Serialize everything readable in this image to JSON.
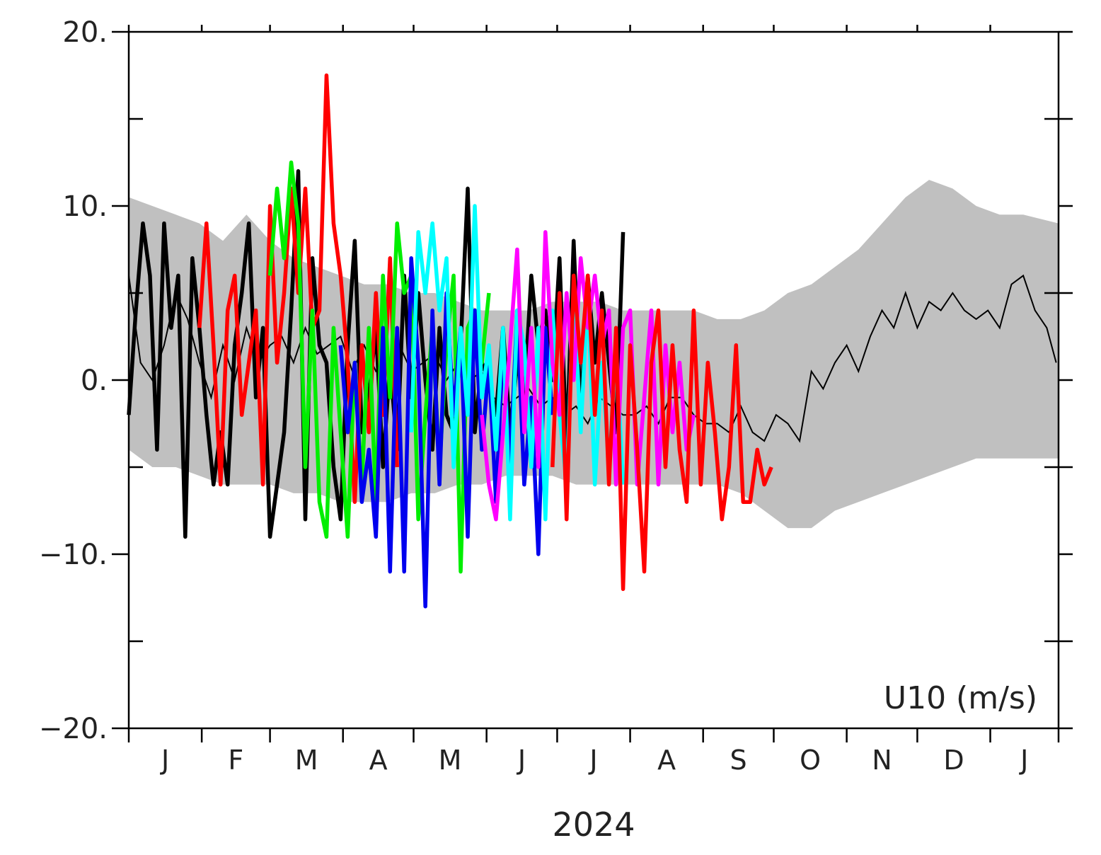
{
  "chart_data": {
    "type": "line",
    "title": "",
    "xlabel": "2024",
    "ylabel": "",
    "annotation": "U10 (m/s)",
    "x_unit": "day_of_year_2024",
    "xlim": [
      0,
      395
    ],
    "ylim": [
      -20,
      20
    ],
    "y_ticks": [
      -20,
      -10,
      0,
      10,
      20
    ],
    "y_tick_labels": [
      "−20.",
      "−10.",
      "0.",
      "10.",
      "20."
    ],
    "month_ticks": [
      0,
      31,
      60,
      91,
      121,
      152,
      182,
      213,
      244,
      274,
      305,
      335,
      366
    ],
    "month_labels": [
      "J",
      "F",
      "M",
      "A",
      "M",
      "J",
      "J",
      "A",
      "S",
      "O",
      "N",
      "D",
      "J"
    ],
    "grid": false,
    "band": {
      "name": "",
      "color": "#c0c0c0",
      "x": [
        0,
        10,
        20,
        30,
        40,
        50,
        60,
        70,
        80,
        90,
        100,
        110,
        120,
        130,
        140,
        150,
        160,
        170,
        180,
        190,
        200,
        210,
        220,
        230,
        240,
        250,
        260,
        270,
        280,
        290,
        300,
        310,
        320,
        330,
        340,
        350,
        360,
        370,
        380,
        395
      ],
      "upper": [
        10.5,
        10,
        9.5,
        9,
        8,
        9.5,
        8,
        7,
        6.5,
        6,
        5.5,
        5.5,
        5,
        5,
        4.5,
        4,
        4,
        4,
        4.5,
        4.5,
        4.5,
        4,
        4,
        4,
        4,
        3.5,
        3.5,
        4,
        5,
        5.5,
        6.5,
        7.5,
        9,
        10.5,
        11.5,
        11,
        10,
        9.5,
        9.5,
        9
      ],
      "lower": [
        -4,
        -5,
        -5,
        -5.5,
        -6,
        -6,
        -6,
        -6.5,
        -6.5,
        -7,
        -7,
        -7,
        -6.5,
        -6.5,
        -6,
        -6,
        -5.5,
        -5.5,
        -5.5,
        -6,
        -6,
        -6,
        -6,
        -6,
        -6,
        -6,
        -6.5,
        -7.5,
        -8.5,
        -8.5,
        -7.5,
        -7,
        -6.5,
        -6,
        -5.5,
        -5,
        -4.5,
        -4.5,
        -4.5,
        -4.5
      ]
    },
    "climatology": {
      "name": "",
      "color": "#000000",
      "x": [
        0,
        5,
        10,
        15,
        20,
        25,
        30,
        35,
        40,
        45,
        50,
        55,
        60,
        65,
        70,
        75,
        80,
        85,
        90,
        95,
        100,
        105,
        110,
        115,
        120,
        125,
        130,
        135,
        140,
        145,
        150,
        155,
        160,
        165,
        170,
        175,
        180,
        185,
        190,
        195,
        200,
        205,
        210,
        215,
        220,
        225,
        230,
        235,
        240,
        245,
        250,
        255,
        260,
        265,
        270,
        275,
        280,
        285,
        290,
        295,
        300,
        305,
        310,
        315,
        320,
        325,
        330,
        335,
        340,
        345,
        350,
        355,
        360,
        365,
        370,
        375,
        380,
        385,
        390,
        394
      ],
      "y": [
        6,
        1,
        0,
        2,
        5,
        3.5,
        1,
        -1,
        2,
        0,
        3,
        1,
        2,
        2.5,
        1,
        3,
        1.5,
        2,
        2.5,
        0.5,
        2,
        0.5,
        1,
        2,
        0.5,
        1,
        1.5,
        0,
        1,
        0,
        0.5,
        -1,
        -1.5,
        -1,
        -0.5,
        -1.5,
        -1,
        -2,
        -1.5,
        -2.5,
        -1,
        -1.5,
        -2,
        -2,
        -1.5,
        -2.5,
        -1,
        -1,
        -2,
        -2.5,
        -2.5,
        -3,
        -1.5,
        -3,
        -3.5,
        -2,
        -2.5,
        -3.5,
        0.5,
        -0.5,
        1,
        2,
        0.5,
        2.5,
        4,
        3,
        5,
        3,
        4.5,
        4,
        5,
        4,
        3.5,
        4,
        3,
        5.5,
        6,
        4,
        3,
        1
      ]
    },
    "series": [
      {
        "name": "",
        "color": "#000000",
        "x": [
          0,
          3,
          6,
          9,
          12,
          15,
          18,
          21,
          24,
          27,
          30,
          33,
          36,
          39,
          42,
          45,
          48,
          51,
          54,
          57,
          60,
          63,
          66,
          69,
          72,
          75,
          78,
          81,
          84,
          87,
          90,
          93,
          96,
          99,
          102,
          105,
          108,
          111,
          114,
          117,
          120,
          123,
          126,
          129,
          132,
          135,
          138,
          141,
          144,
          147,
          150,
          153,
          156,
          159,
          162,
          165,
          168,
          171,
          174,
          177,
          180,
          183,
          186,
          189,
          192,
          195,
          198,
          201,
          204,
          207,
          210
        ],
        "y": [
          -2,
          4,
          9,
          6,
          -4,
          9,
          3,
          6,
          -9,
          7,
          3,
          -2,
          -6,
          -3,
          -6,
          2,
          5,
          9,
          -1,
          3,
          -9,
          -6,
          -3,
          4,
          12,
          -8,
          7,
          2,
          1,
          -5,
          -8,
          2,
          8,
          -3,
          -1,
          3,
          -5,
          1,
          -4,
          6,
          -1,
          5,
          0,
          -4,
          3,
          -2,
          -3,
          2,
          11,
          -3,
          1,
          0,
          -2,
          3,
          -3,
          1,
          -1,
          6,
          2,
          4,
          0,
          7,
          -4,
          8,
          -2,
          6,
          1,
          5,
          1,
          -3,
          8.5
        ]
      },
      {
        "name": "",
        "color": "#ff0000",
        "x": [
          30,
          33,
          36,
          39,
          42,
          45,
          48,
          51,
          54,
          57,
          60,
          63,
          66,
          69,
          72,
          75,
          78,
          81,
          84,
          87,
          90,
          93,
          96,
          99,
          102,
          105,
          108,
          111,
          114
        ],
        "y": [
          3,
          9,
          2,
          -6,
          4,
          6,
          -2,
          1,
          4,
          -6,
          10,
          1,
          5,
          11,
          5,
          11,
          3,
          4,
          17.5,
          9,
          6,
          1,
          -7,
          2,
          -3,
          5,
          -2,
          7,
          -5
        ]
      },
      {
        "name": "",
        "color": "#00ee00",
        "x": [
          60,
          63,
          66,
          69,
          72,
          75,
          78,
          81,
          84,
          87,
          90,
          93,
          96,
          99,
          102,
          105,
          108,
          111,
          114,
          117,
          120,
          123,
          126,
          129,
          132,
          135,
          138,
          141,
          144,
          147,
          150,
          153
        ],
        "y": [
          6,
          11,
          7,
          12.5,
          9,
          -5,
          4,
          -7,
          -9,
          3,
          -3,
          -9,
          1,
          -6,
          3,
          -7,
          6,
          -1,
          9,
          5,
          6,
          -8,
          -2,
          3,
          -5,
          2,
          6,
          -11,
          3,
          4,
          1,
          5
        ]
      },
      {
        "name": "",
        "color": "#0000ee",
        "x": [
          90,
          93,
          96,
          99,
          102,
          105,
          108,
          111,
          114,
          117,
          120,
          123,
          126,
          129,
          132,
          135,
          138,
          141,
          144,
          147,
          150,
          153,
          156,
          159,
          162,
          165,
          168,
          171,
          174,
          177,
          180
        ],
        "y": [
          2,
          -3,
          1,
          -7,
          -4,
          -9,
          3,
          -11,
          3,
          -11,
          7,
          1,
          -13,
          4,
          -6,
          5,
          -2,
          3,
          -9,
          4,
          -4,
          1,
          -7,
          2,
          -5,
          4,
          -6,
          -1,
          -10,
          3,
          -2
        ]
      },
      {
        "name": "",
        "color": "#00ffff",
        "x": [
          120,
          123,
          126,
          129,
          132,
          135,
          138,
          141,
          144,
          147,
          150,
          153,
          156,
          159,
          162,
          165,
          168,
          171,
          174,
          177,
          180,
          183,
          186,
          189,
          192,
          195,
          198,
          201,
          204,
          207,
          210
        ],
        "y": [
          -3,
          8.5,
          5,
          9,
          4,
          7,
          -5,
          3,
          -2,
          10,
          -1,
          2,
          -4,
          3,
          -8,
          4,
          2,
          -5,
          3,
          -8,
          4,
          -2,
          -6,
          5,
          -3,
          5,
          -6,
          1,
          -5,
          2,
          -6
        ]
      },
      {
        "name": "",
        "color": "#ff00ff",
        "x": [
          150,
          153,
          156,
          159,
          162,
          165,
          168,
          171,
          174,
          177,
          180,
          183,
          186,
          189,
          192,
          195,
          198,
          201,
          204,
          207,
          210,
          213,
          216,
          219,
          222,
          225,
          228,
          231,
          234,
          237,
          240
        ],
        "y": [
          -2,
          -6,
          -8,
          -3,
          2,
          7.5,
          -3,
          3,
          -5,
          8.5,
          1,
          -2,
          5,
          0,
          7,
          3,
          6,
          2,
          4,
          -6,
          3,
          4,
          -6,
          -1,
          4,
          -6,
          2,
          -3,
          1,
          -4,
          -2
        ]
      },
      {
        "name": "",
        "color": "#ff0000",
        "x": [
          180,
          183,
          186,
          189,
          192,
          195,
          198,
          201,
          204,
          207,
          210,
          213,
          216,
          219,
          222,
          225,
          228,
          231,
          234,
          237,
          240,
          243,
          246,
          249,
          252,
          255,
          258,
          261,
          264,
          267,
          270,
          273
        ],
        "y": [
          -5,
          5,
          -8,
          6,
          1,
          6,
          -2,
          4,
          -6,
          3,
          -12,
          2,
          -4,
          -11,
          1,
          4,
          -5,
          2,
          -4,
          -7,
          4,
          -6,
          1,
          -3,
          -8,
          -5,
          2,
          -7,
          -7,
          -4,
          -6,
          -5
        ]
      }
    ]
  }
}
